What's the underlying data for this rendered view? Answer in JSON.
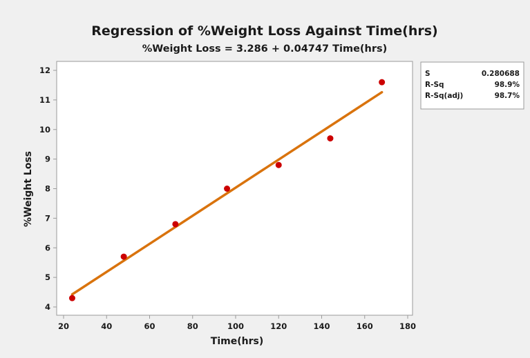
{
  "colors": {
    "background": "#f0f0f0",
    "plot_area": "#ffffff",
    "fit_line": "#d9730d",
    "points": "#cc0000",
    "axis": "#9a9a9a"
  },
  "chart_data": {
    "type": "scatter",
    "title": "Regression of %Weight Loss Against Time(hrs)",
    "subtitle": "%Weight Loss = 3.286 + 0.04747 Time(hrs)",
    "xlabel": "Time(hrs)",
    "ylabel": "%Weight Loss",
    "xlim": [
      20,
      180
    ],
    "ylim": [
      3.8,
      12.2
    ],
    "xticks": [
      20,
      40,
      60,
      80,
      100,
      120,
      140,
      160,
      180
    ],
    "yticks": [
      4,
      5,
      6,
      7,
      8,
      9,
      10,
      11,
      12
    ],
    "grid": false,
    "points": [
      {
        "x": 24,
        "y": 4.3
      },
      {
        "x": 48,
        "y": 5.7
      },
      {
        "x": 72,
        "y": 6.8
      },
      {
        "x": 96,
        "y": 8.0
      },
      {
        "x": 120,
        "y": 8.8
      },
      {
        "x": 144,
        "y": 9.7
      },
      {
        "x": 168,
        "y": 11.6
      }
    ],
    "fit": {
      "intercept": 3.286,
      "slope": 0.04747,
      "x_start": 24,
      "x_end": 168
    },
    "stats": [
      {
        "label": "S",
        "value": "0.280688"
      },
      {
        "label": "R-Sq",
        "value": "98.9%"
      },
      {
        "label": "R-Sq(adj)",
        "value": "98.7%"
      }
    ]
  }
}
